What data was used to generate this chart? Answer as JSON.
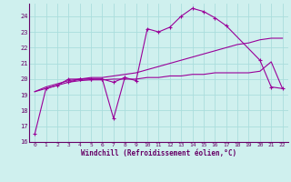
{
  "background_color": "#cff0ee",
  "grid_color": "#aadddd",
  "line_color": "#990099",
  "xlim": [
    -0.5,
    22.5
  ],
  "ylim": [
    16,
    24.8
  ],
  "yticks": [
    16,
    17,
    18,
    19,
    20,
    21,
    22,
    23,
    24
  ],
  "xticks": [
    0,
    1,
    2,
    3,
    4,
    5,
    6,
    7,
    8,
    9,
    10,
    11,
    12,
    13,
    14,
    15,
    16,
    17,
    18,
    19,
    20,
    21,
    22
  ],
  "xlabel": "Windchill (Refroidissement éolien,°C)",
  "series": [
    {
      "x": [
        0,
        1,
        2,
        3,
        4,
        5,
        6,
        7,
        8,
        9,
        10,
        11,
        12,
        13,
        14,
        15,
        16,
        17,
        20,
        21,
        22
      ],
      "y": [
        16.5,
        19.4,
        19.6,
        20.0,
        20.0,
        20.0,
        20.0,
        19.8,
        20.1,
        19.9,
        23.2,
        23.0,
        23.3,
        24.0,
        24.5,
        24.3,
        23.9,
        23.4,
        21.2,
        19.5,
        19.4
      ],
      "marker": "+"
    },
    {
      "x": [
        3,
        4,
        5,
        6,
        7,
        8
      ],
      "y": [
        19.8,
        20.0,
        20.0,
        20.0,
        17.5,
        20.1
      ],
      "marker": "+"
    },
    {
      "x": [
        0,
        1,
        2,
        3,
        4,
        5,
        6,
        7,
        8,
        9,
        10,
        11,
        12,
        13,
        14,
        15,
        16,
        17,
        18,
        19,
        20,
        21,
        22
      ],
      "y": [
        19.2,
        19.5,
        19.7,
        19.9,
        20.0,
        20.1,
        20.1,
        20.2,
        20.3,
        20.4,
        20.6,
        20.8,
        21.0,
        21.2,
        21.4,
        21.6,
        21.8,
        22.0,
        22.2,
        22.3,
        22.5,
        22.6,
        22.6
      ],
      "marker": null
    },
    {
      "x": [
        0,
        1,
        2,
        3,
        4,
        5,
        6,
        7,
        8,
        9,
        10,
        11,
        12,
        13,
        14,
        15,
        16,
        17,
        18,
        19,
        20,
        21,
        22
      ],
      "y": [
        19.2,
        19.4,
        19.6,
        19.8,
        19.9,
        19.95,
        19.95,
        20.0,
        20.0,
        20.0,
        20.1,
        20.1,
        20.2,
        20.2,
        20.3,
        20.3,
        20.4,
        20.4,
        20.4,
        20.4,
        20.5,
        21.1,
        19.4
      ],
      "marker": null
    }
  ]
}
